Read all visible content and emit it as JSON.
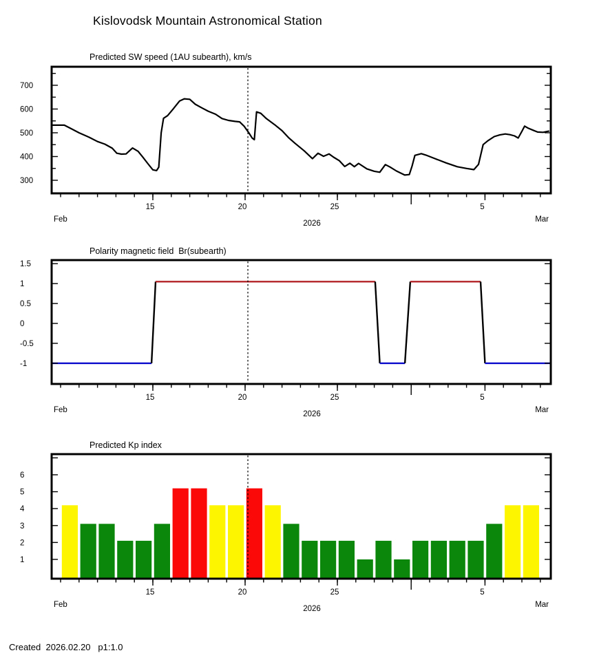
{
  "page": {
    "title": "Kislovodsk Mountain Astronomical Station",
    "footer": "Created  2026.02.20   p1:1.0"
  },
  "colors": {
    "background": "#ffffff",
    "text": "#000000",
    "frame": "#000000",
    "now_line": "#000000",
    "sw_line": "#000000",
    "polarity_positive": "#b22226",
    "polarity_negative": "#0a0acc",
    "polarity_transition": "#000000",
    "kp_quiet": "#0b870b",
    "kp_active": "#fdf500",
    "kp_storm": "#fb0808"
  },
  "x_axis": {
    "start_day": 9.5,
    "end_day": 36.57,
    "minor_tick_days_from": 10,
    "minor_tick_days_to": 36,
    "labeled_ticks": [
      {
        "day": 15,
        "label": "15"
      },
      {
        "day": 20,
        "label": "20"
      },
      {
        "day": 25,
        "label": "25"
      },
      {
        "day": 33,
        "label": "5"
      }
    ],
    "month_boundary_tick_day": 29,
    "month_left_label": "Feb",
    "month_right_label": "Mar",
    "year_label": "2026",
    "now_line_day": 20.15
  },
  "chart_data": [
    {
      "id": "sw-speed",
      "type": "line",
      "title": "Predicted SW speed (1AU subearth), km/s",
      "ylim": [
        245,
        778
      ],
      "yticks": [
        {
          "v": 300,
          "label": "300"
        },
        {
          "v": 400,
          "label": "400"
        },
        {
          "v": 500,
          "label": "500"
        },
        {
          "v": 600,
          "label": "600"
        },
        {
          "v": 700,
          "label": "700"
        }
      ],
      "yticks_minor": [
        350,
        450,
        550,
        650,
        750
      ],
      "series": [
        {
          "name": "predicted-sw-speed",
          "color": "sw_line",
          "points": [
            [
              9.5,
              532
            ],
            [
              10.2,
              532
            ],
            [
              10.6,
              516
            ],
            [
              11.0,
              500
            ],
            [
              11.55,
              481
            ],
            [
              12.0,
              463
            ],
            [
              12.4,
              452
            ],
            [
              12.8,
              435
            ],
            [
              13.05,
              414
            ],
            [
              13.3,
              410
            ],
            [
              13.55,
              411
            ],
            [
              13.9,
              436
            ],
            [
              14.2,
              422
            ],
            [
              14.45,
              398
            ],
            [
              14.75,
              368
            ],
            [
              15.0,
              344
            ],
            [
              15.2,
              341
            ],
            [
              15.32,
              355
            ],
            [
              15.45,
              500
            ],
            [
              15.58,
              561
            ],
            [
              15.8,
              572
            ],
            [
              16.1,
              600
            ],
            [
              16.45,
              634
            ],
            [
              16.7,
              643
            ],
            [
              17.0,
              641
            ],
            [
              17.3,
              620
            ],
            [
              17.65,
              605
            ],
            [
              18.0,
              591
            ],
            [
              18.4,
              578
            ],
            [
              18.75,
              560
            ],
            [
              19.1,
              552
            ],
            [
              19.45,
              548
            ],
            [
              19.7,
              546
            ],
            [
              19.95,
              527
            ],
            [
              20.2,
              500
            ],
            [
              20.38,
              478
            ],
            [
              20.5,
              471
            ],
            [
              20.56,
              530
            ],
            [
              20.62,
              588
            ],
            [
              20.85,
              582
            ],
            [
              21.15,
              560
            ],
            [
              21.6,
              534
            ],
            [
              22.0,
              509
            ],
            [
              22.35,
              480
            ],
            [
              22.7,
              456
            ],
            [
              23.2,
              424
            ],
            [
              23.65,
              391
            ],
            [
              23.95,
              414
            ],
            [
              24.25,
              401
            ],
            [
              24.55,
              411
            ],
            [
              24.8,
              397
            ],
            [
              25.1,
              383
            ],
            [
              25.4,
              358
            ],
            [
              25.68,
              372
            ],
            [
              25.92,
              357
            ],
            [
              26.15,
              371
            ],
            [
              26.6,
              348
            ],
            [
              27.0,
              338
            ],
            [
              27.3,
              334
            ],
            [
              27.6,
              366
            ],
            [
              27.85,
              356
            ],
            [
              28.2,
              339
            ],
            [
              28.65,
              322
            ],
            [
              28.9,
              324
            ],
            [
              29.05,
              360
            ],
            [
              29.2,
              405
            ],
            [
              29.55,
              412
            ],
            [
              29.8,
              406
            ],
            [
              30.3,
              391
            ],
            [
              30.9,
              373
            ],
            [
              31.5,
              357
            ],
            [
              32.0,
              350
            ],
            [
              32.4,
              345
            ],
            [
              32.65,
              367
            ],
            [
              32.9,
              450
            ],
            [
              33.15,
              466
            ],
            [
              33.5,
              484
            ],
            [
              33.8,
              491
            ],
            [
              34.1,
              495
            ],
            [
              34.35,
              492
            ],
            [
              34.6,
              487
            ],
            [
              34.8,
              478
            ],
            [
              35.0,
              506
            ],
            [
              35.15,
              528
            ],
            [
              35.35,
              519
            ],
            [
              35.6,
              511
            ],
            [
              35.85,
              503
            ],
            [
              36.15,
              502
            ],
            [
              36.45,
              507
            ]
          ]
        }
      ]
    },
    {
      "id": "polarity",
      "type": "step-line",
      "title": "Polarity magnetic field  Br(subearth)",
      "ylim": [
        -1.52,
        1.59
      ],
      "yticks": [
        {
          "v": -1,
          "label": "-1"
        },
        {
          "v": -0.5,
          "label": "-0.5"
        },
        {
          "v": 0,
          "label": "0"
        },
        {
          "v": 0.5,
          "label": "0.5"
        },
        {
          "v": 1,
          "label": "1"
        },
        {
          "v": 1.5,
          "label": "1.5"
        }
      ],
      "segments": [
        {
          "color": "polarity_negative",
          "points": [
            [
              9.5,
              -1
            ],
            [
              14.93,
              -1
            ]
          ]
        },
        {
          "color": "polarity_transition",
          "points": [
            [
              14.93,
              -1
            ],
            [
              15.15,
              1.05
            ]
          ]
        },
        {
          "color": "polarity_positive",
          "points": [
            [
              15.15,
              1.05
            ],
            [
              27.05,
              1.05
            ]
          ]
        },
        {
          "color": "polarity_transition",
          "points": [
            [
              27.05,
              1.05
            ],
            [
              27.3,
              -1
            ]
          ]
        },
        {
          "color": "polarity_negative",
          "points": [
            [
              27.3,
              -1
            ],
            [
              28.66,
              -1
            ]
          ]
        },
        {
          "color": "polarity_transition",
          "points": [
            [
              28.66,
              -1
            ],
            [
              28.95,
              1.05
            ]
          ]
        },
        {
          "color": "polarity_positive",
          "points": [
            [
              28.95,
              1.05
            ],
            [
              32.76,
              1.05
            ]
          ]
        },
        {
          "color": "polarity_transition",
          "points": [
            [
              32.76,
              1.05
            ],
            [
              33.0,
              -1
            ]
          ]
        },
        {
          "color": "polarity_negative",
          "points": [
            [
              33.0,
              -1
            ],
            [
              36.57,
              -1
            ]
          ]
        }
      ]
    },
    {
      "id": "kp-index",
      "type": "bar",
      "title": "Predicted Kp index",
      "ylim": [
        -0.14,
        7.22
      ],
      "yticks": [
        {
          "v": 1,
          "label": "1"
        },
        {
          "v": 2,
          "label": "2"
        },
        {
          "v": 3,
          "label": "3"
        },
        {
          "v": 4,
          "label": "4"
        },
        {
          "v": 5,
          "label": "5"
        },
        {
          "v": 6,
          "label": "6"
        }
      ],
      "yticks_unlabeled": [
        7
      ],
      "bars": [
        {
          "day": 10,
          "value": 4.2,
          "color": "kp_active"
        },
        {
          "day": 11,
          "value": 3.1,
          "color": "kp_quiet"
        },
        {
          "day": 12,
          "value": 3.1,
          "color": "kp_quiet"
        },
        {
          "day": 13,
          "value": 2.1,
          "color": "kp_quiet"
        },
        {
          "day": 14,
          "value": 2.1,
          "color": "kp_quiet"
        },
        {
          "day": 15,
          "value": 3.1,
          "color": "kp_quiet"
        },
        {
          "day": 16,
          "value": 5.2,
          "color": "kp_storm"
        },
        {
          "day": 17,
          "value": 5.2,
          "color": "kp_storm"
        },
        {
          "day": 18,
          "value": 4.2,
          "color": "kp_active"
        },
        {
          "day": 19,
          "value": 4.2,
          "color": "kp_active"
        },
        {
          "day": 20,
          "value": 5.2,
          "color": "kp_storm"
        },
        {
          "day": 21,
          "value": 4.2,
          "color": "kp_active"
        },
        {
          "day": 22,
          "value": 3.1,
          "color": "kp_quiet"
        },
        {
          "day": 23,
          "value": 2.1,
          "color": "kp_quiet"
        },
        {
          "day": 24,
          "value": 2.1,
          "color": "kp_quiet"
        },
        {
          "day": 25,
          "value": 2.1,
          "color": "kp_quiet"
        },
        {
          "day": 26,
          "value": 1.0,
          "color": "kp_quiet"
        },
        {
          "day": 27,
          "value": 2.1,
          "color": "kp_quiet"
        },
        {
          "day": 28,
          "value": 1.0,
          "color": "kp_quiet"
        },
        {
          "day": 29,
          "value": 2.1,
          "color": "kp_quiet"
        },
        {
          "day": 30,
          "value": 2.1,
          "color": "kp_quiet"
        },
        {
          "day": 31,
          "value": 2.1,
          "color": "kp_quiet"
        },
        {
          "day": 32,
          "value": 2.1,
          "color": "kp_quiet"
        },
        {
          "day": 33,
          "value": 3.1,
          "color": "kp_quiet"
        },
        {
          "day": 34,
          "value": 4.2,
          "color": "kp_active"
        },
        {
          "day": 35,
          "value": 4.2,
          "color": "kp_active"
        }
      ]
    }
  ]
}
